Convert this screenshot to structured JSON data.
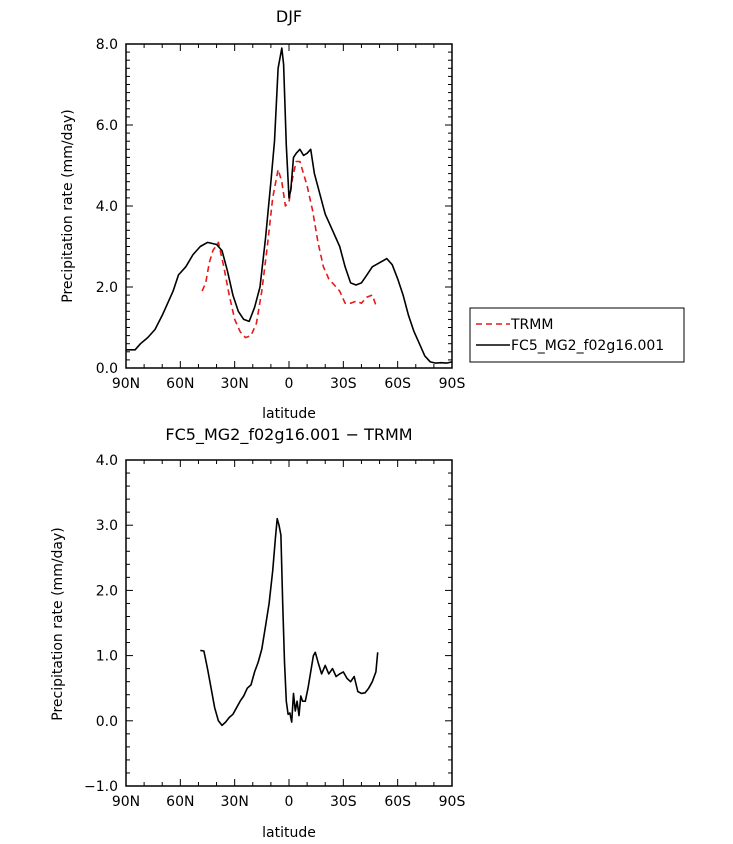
{
  "chart_data": [
    {
      "type": "line",
      "title": "DJF",
      "xlabel": "latitude",
      "ylabel": "Precipitation rate (mm/day)",
      "xlim": [
        -90,
        90
      ],
      "ylim": [
        0,
        8
      ],
      "xticks": [
        {
          "value": -90,
          "label": "90N"
        },
        {
          "value": -60,
          "label": "60N"
        },
        {
          "value": -30,
          "label": "30N"
        },
        {
          "value": 0,
          "label": "0"
        },
        {
          "value": 30,
          "label": "30S"
        },
        {
          "value": 60,
          "label": "60S"
        },
        {
          "value": 90,
          "label": "90S"
        }
      ],
      "yticks": [
        {
          "value": 0,
          "label": "0.0"
        },
        {
          "value": 2,
          "label": "2.0"
        },
        {
          "value": 4,
          "label": "4.0"
        },
        {
          "value": 6,
          "label": "6.0"
        },
        {
          "value": 8,
          "label": "8.0"
        }
      ],
      "legend": {
        "placement": "right"
      },
      "series": [
        {
          "name": "TRMM",
          "color": "#e41a1c",
          "dash": "dashed",
          "points": [
            [
              -48,
              1.9
            ],
            [
              -46,
              2.1
            ],
            [
              -44,
              2.6
            ],
            [
              -42,
              2.9
            ],
            [
              -39,
              3.1
            ],
            [
              -36,
              2.5
            ],
            [
              -33,
              1.8
            ],
            [
              -30,
              1.2
            ],
            [
              -27,
              0.9
            ],
            [
              -24,
              0.75
            ],
            [
              -21,
              0.8
            ],
            [
              -18,
              1.1
            ],
            [
              -15,
              1.9
            ],
            [
              -12,
              3.0
            ],
            [
              -9,
              4.2
            ],
            [
              -6,
              4.9
            ],
            [
              -4,
              4.6
            ],
            [
              -2,
              4.0
            ],
            [
              0,
              4.1
            ],
            [
              2,
              4.7
            ],
            [
              4,
              5.1
            ],
            [
              6,
              5.1
            ],
            [
              8,
              4.8
            ],
            [
              10,
              4.5
            ],
            [
              13,
              3.9
            ],
            [
              16,
              3.1
            ],
            [
              19,
              2.5
            ],
            [
              22,
              2.2
            ],
            [
              25,
              2.05
            ],
            [
              28,
              1.9
            ],
            [
              31,
              1.6
            ],
            [
              34,
              1.6
            ],
            [
              37,
              1.65
            ],
            [
              40,
              1.6
            ],
            [
              43,
              1.75
            ],
            [
              46,
              1.8
            ],
            [
              48,
              1.55
            ]
          ]
        },
        {
          "name": "FC5_MG2_f02g16.001",
          "color": "#000000",
          "dash": "solid",
          "points": [
            [
              -90,
              0.45
            ],
            [
              -85,
              0.45
            ],
            [
              -82,
              0.6
            ],
            [
              -78,
              0.75
            ],
            [
              -74,
              0.95
            ],
            [
              -70,
              1.3
            ],
            [
              -67,
              1.6
            ],
            [
              -64,
              1.9
            ],
            [
              -61,
              2.3
            ],
            [
              -57,
              2.5
            ],
            [
              -53,
              2.8
            ],
            [
              -49,
              3.0
            ],
            [
              -45,
              3.1
            ],
            [
              -40,
              3.05
            ],
            [
              -37,
              2.9
            ],
            [
              -34,
              2.4
            ],
            [
              -31,
              1.8
            ],
            [
              -28,
              1.4
            ],
            [
              -25,
              1.2
            ],
            [
              -22,
              1.15
            ],
            [
              -19,
              1.5
            ],
            [
              -16,
              2.0
            ],
            [
              -13,
              3.2
            ],
            [
              -10,
              4.6
            ],
            [
              -8,
              5.6
            ],
            [
              -6,
              7.4
            ],
            [
              -4,
              7.9
            ],
            [
              -3,
              7.5
            ],
            [
              -1.5,
              5.5
            ],
            [
              0,
              4.2
            ],
            [
              1,
              4.4
            ],
            [
              2.5,
              5.2
            ],
            [
              4,
              5.3
            ],
            [
              6,
              5.4
            ],
            [
              8,
              5.25
            ],
            [
              10,
              5.3
            ],
            [
              12,
              5.4
            ],
            [
              14,
              4.8
            ],
            [
              17,
              4.3
            ],
            [
              20,
              3.8
            ],
            [
              24,
              3.4
            ],
            [
              28,
              3.0
            ],
            [
              31,
              2.5
            ],
            [
              34,
              2.1
            ],
            [
              37,
              2.05
            ],
            [
              40,
              2.1
            ],
            [
              43,
              2.3
            ],
            [
              46,
              2.5
            ],
            [
              50,
              2.6
            ],
            [
              54,
              2.7
            ],
            [
              57,
              2.55
            ],
            [
              60,
              2.2
            ],
            [
              63,
              1.8
            ],
            [
              66,
              1.3
            ],
            [
              69,
              0.9
            ],
            [
              72,
              0.6
            ],
            [
              75,
              0.3
            ],
            [
              78,
              0.15
            ],
            [
              81,
              0.12
            ],
            [
              84,
              0.13
            ],
            [
              87,
              0.12
            ],
            [
              90,
              0.15
            ]
          ]
        }
      ]
    },
    {
      "type": "line",
      "title": "FC5_MG2_f02g16.001 − TRMM",
      "xlabel": "latitude",
      "ylabel": "Precipitation rate (mm/day)",
      "xlim": [
        -90,
        90
      ],
      "ylim": [
        -1,
        4
      ],
      "xticks": [
        {
          "value": -90,
          "label": "90N"
        },
        {
          "value": -60,
          "label": "60N"
        },
        {
          "value": -30,
          "label": "30N"
        },
        {
          "value": 0,
          "label": "0"
        },
        {
          "value": 30,
          "label": "30S"
        },
        {
          "value": 60,
          "label": "60S"
        },
        {
          "value": 90,
          "label": "90S"
        }
      ],
      "yticks": [
        {
          "value": -1,
          "label": "−1.0"
        },
        {
          "value": 0,
          "label": "0.0"
        },
        {
          "value": 1,
          "label": "1.0"
        },
        {
          "value": 2,
          "label": "2.0"
        },
        {
          "value": 3,
          "label": "3.0"
        },
        {
          "value": 4,
          "label": "4.0"
        }
      ],
      "series": [
        {
          "name": "FC5_MG2_f02g16.001 − TRMM",
          "color": "#000000",
          "dash": "solid",
          "points": [
            [
              -49,
              1.08
            ],
            [
              -47,
              1.07
            ],
            [
              -45,
              0.8
            ],
            [
              -43,
              0.5
            ],
            [
              -41,
              0.2
            ],
            [
              -39,
              0.0
            ],
            [
              -37,
              -0.07
            ],
            [
              -35,
              -0.02
            ],
            [
              -33,
              0.05
            ],
            [
              -31,
              0.1
            ],
            [
              -29,
              0.2
            ],
            [
              -27,
              0.3
            ],
            [
              -25,
              0.38
            ],
            [
              -23,
              0.5
            ],
            [
              -21,
              0.55
            ],
            [
              -19,
              0.75
            ],
            [
              -17,
              0.9
            ],
            [
              -15,
              1.1
            ],
            [
              -13,
              1.45
            ],
            [
              -11,
              1.8
            ],
            [
              -9,
              2.3
            ],
            [
              -7.5,
              2.8
            ],
            [
              -6.5,
              3.1
            ],
            [
              -5.5,
              3.0
            ],
            [
              -4.5,
              2.85
            ],
            [
              -3.5,
              1.8
            ],
            [
              -2.5,
              0.9
            ],
            [
              -1.5,
              0.3
            ],
            [
              -0.5,
              0.1
            ],
            [
              0.5,
              0.12
            ],
            [
              1.5,
              -0.02
            ],
            [
              2.5,
              0.42
            ],
            [
              3.5,
              0.15
            ],
            [
              4.5,
              0.3
            ],
            [
              5.5,
              0.08
            ],
            [
              6.5,
              0.38
            ],
            [
              7.5,
              0.3
            ],
            [
              9,
              0.3
            ],
            [
              10.5,
              0.5
            ],
            [
              12,
              0.75
            ],
            [
              13.5,
              1.0
            ],
            [
              14.5,
              1.05
            ],
            [
              16,
              0.9
            ],
            [
              18,
              0.72
            ],
            [
              20,
              0.85
            ],
            [
              22,
              0.72
            ],
            [
              24,
              0.8
            ],
            [
              26,
              0.68
            ],
            [
              28,
              0.72
            ],
            [
              30,
              0.75
            ],
            [
              32,
              0.65
            ],
            [
              34,
              0.6
            ],
            [
              36,
              0.68
            ],
            [
              38,
              0.45
            ],
            [
              40,
              0.42
            ],
            [
              42,
              0.43
            ],
            [
              44,
              0.5
            ],
            [
              46,
              0.6
            ],
            [
              48,
              0.75
            ],
            [
              49,
              1.05
            ]
          ]
        }
      ]
    }
  ]
}
